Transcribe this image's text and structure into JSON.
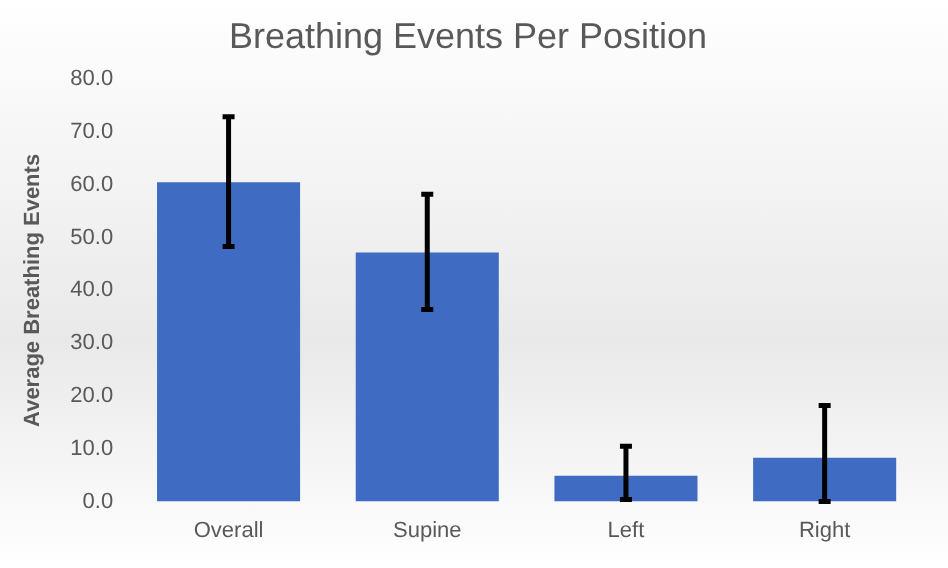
{
  "chart_data": {
    "type": "bar",
    "title": "Breathing Events Per Position",
    "ylabel": "Average Breathing Events",
    "categories": [
      "Overall",
      "Supine",
      "Left",
      "Right"
    ],
    "values": [
      60.5,
      47.2,
      4.9,
      8.3
    ],
    "errors": [
      [
        48.3,
        72.9
      ],
      [
        36.4,
        58.2
      ],
      [
        0.4,
        10.5
      ],
      [
        0,
        18.2
      ]
    ],
    "color": "#3f6bc2",
    "ylim": [
      0,
      80
    ],
    "yticks": [
      {
        "value": 0,
        "label": "0.0"
      },
      {
        "value": 10,
        "label": "10.0"
      },
      {
        "value": 20,
        "label": "20.0"
      },
      {
        "value": 30,
        "label": "30.0"
      },
      {
        "value": 40,
        "label": "40.0"
      },
      {
        "value": 50,
        "label": "50.0"
      },
      {
        "value": 60,
        "label": "60.0"
      },
      {
        "value": 70,
        "label": "70.0"
      },
      {
        "value": 80,
        "label": "80.0"
      }
    ],
    "grid": false,
    "legend": false
  }
}
